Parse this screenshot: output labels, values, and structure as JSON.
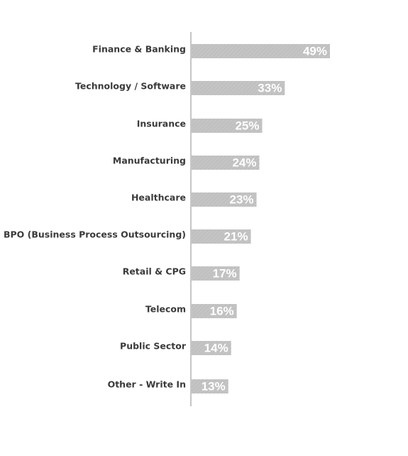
{
  "chart_data": {
    "type": "bar",
    "orientation": "horizontal",
    "categories": [
      "Finance & Banking",
      "Technology / Software",
      "Insurance",
      "Manufacturing",
      "Healthcare",
      "BPO (Business Process Outsourcing)",
      "Retail & CPG",
      "Telecom",
      "Public Sector",
      "Other - Write In"
    ],
    "values": [
      49,
      33,
      25,
      24,
      23,
      21,
      17,
      16,
      14,
      13
    ],
    "value_labels": [
      "49%",
      "33%",
      "25%",
      "24%",
      "23%",
      "21%",
      "17%",
      "16%",
      "14%",
      "13%"
    ],
    "xlim": [
      0,
      100
    ],
    "grid": false,
    "legend": "none",
    "colors": {
      "bar": "#c4c4c4",
      "bar_texture": "#b8b8b8",
      "value_text": "#ffffff",
      "category_text": "#3a3a3a",
      "axis": "#c6c6c6"
    }
  }
}
